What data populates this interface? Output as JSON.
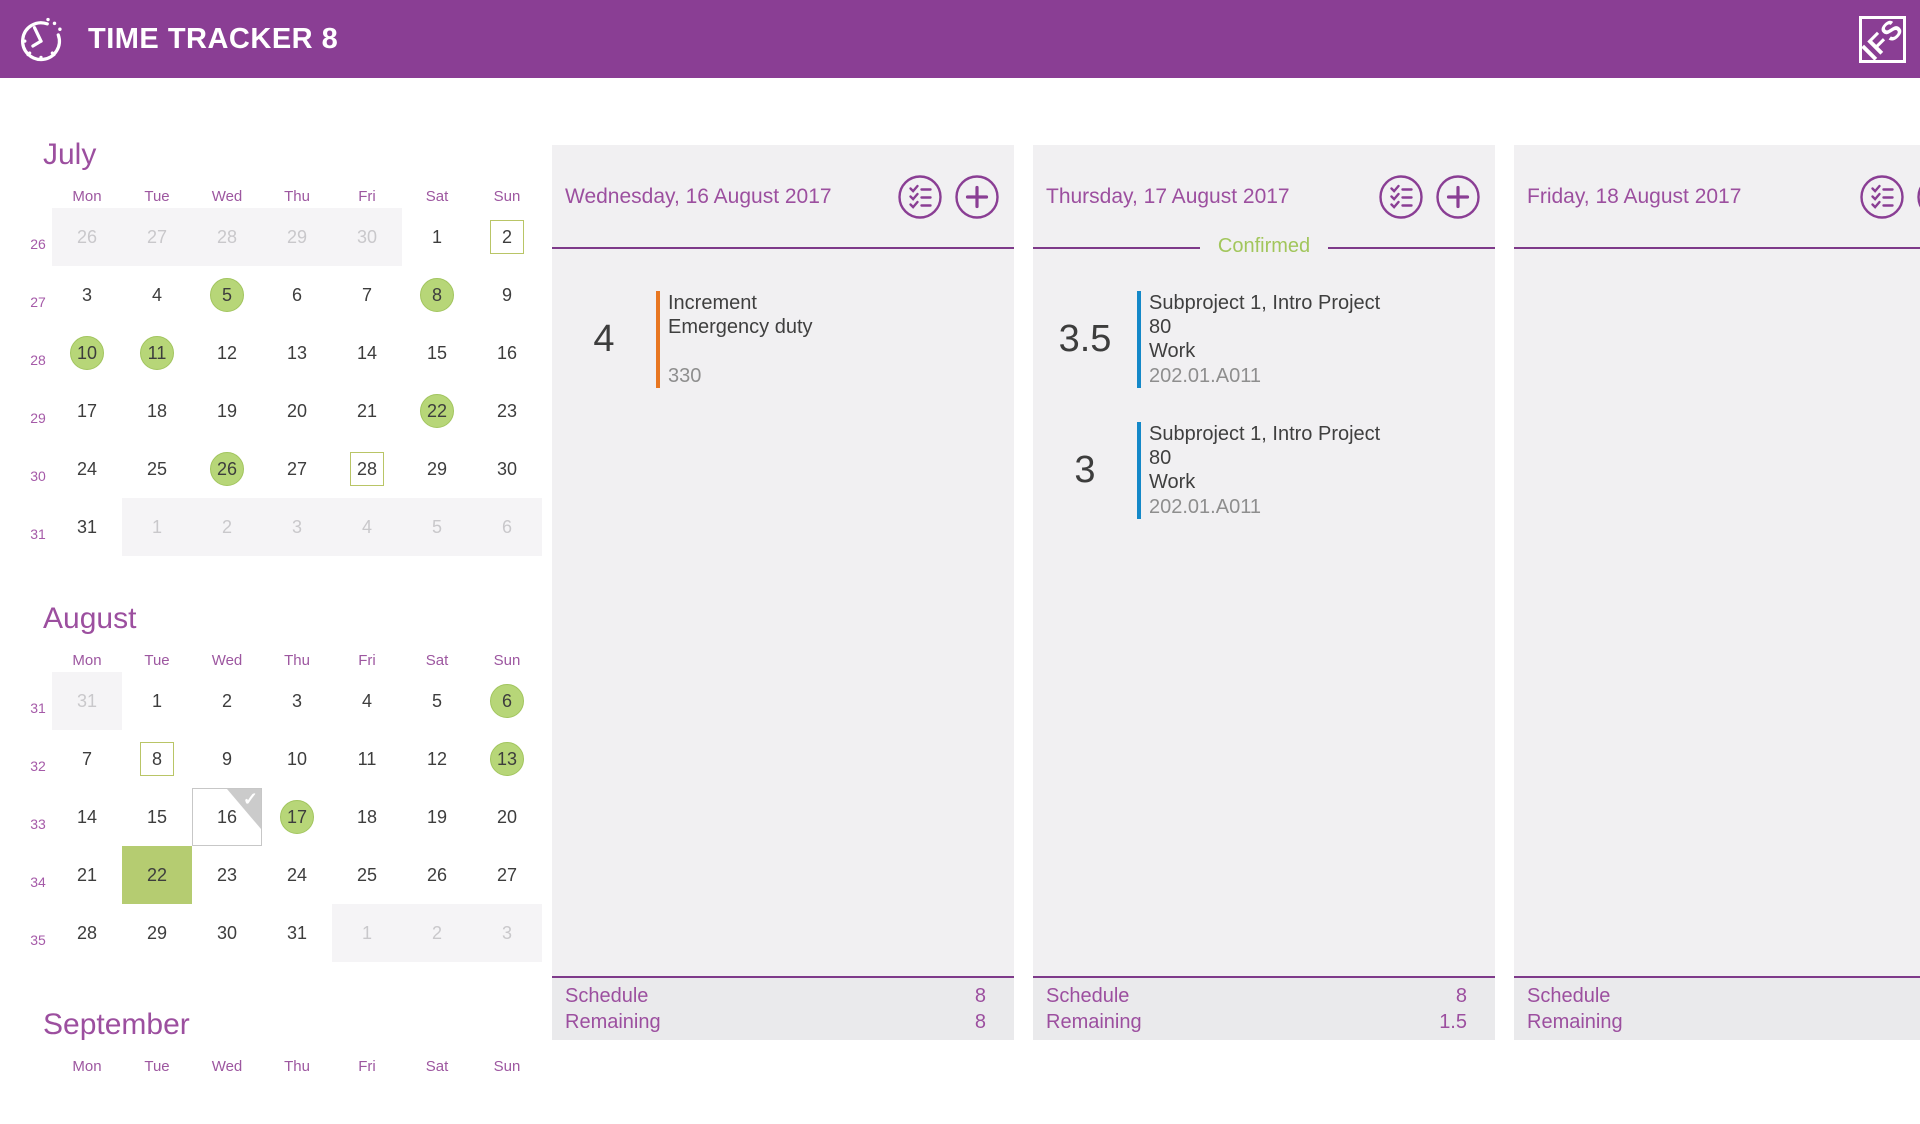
{
  "app": {
    "title": "TIME TRACKER 8",
    "logo_text": "IFS"
  },
  "colors": {
    "header_bg": "#8a3e94",
    "accent_text": "#9c4f9f",
    "line": "#7e3a8a",
    "icon": "#8a3e94",
    "confirmed": "#a2c65c",
    "day_circle_fill": "#b7d678",
    "day_circle_border": "#a2c55e",
    "day_outline_border": "#b9c566",
    "day_selected_bg": "#b5cc71",
    "column_bg": "#f1f0f2",
    "footer_bg": "#eaeaec",
    "muted_bg": "#f5f4f6"
  },
  "weekday_headers": [
    "Mon",
    "Tue",
    "Wed",
    "Thu",
    "Fri",
    "Sat",
    "Sun"
  ],
  "mini_calendars": [
    {
      "month": "July",
      "weeks": [
        {
          "week": 26,
          "days": [
            {
              "d": 26,
              "state": "muted"
            },
            {
              "d": 27,
              "state": "muted"
            },
            {
              "d": 28,
              "state": "muted"
            },
            {
              "d": 29,
              "state": "muted"
            },
            {
              "d": 30,
              "state": "muted"
            },
            {
              "d": 1,
              "state": "normal"
            },
            {
              "d": 2,
              "state": "outlined"
            }
          ]
        },
        {
          "week": 27,
          "days": [
            {
              "d": 3,
              "state": "normal"
            },
            {
              "d": 4,
              "state": "normal"
            },
            {
              "d": 5,
              "state": "circled"
            },
            {
              "d": 6,
              "state": "normal"
            },
            {
              "d": 7,
              "state": "normal"
            },
            {
              "d": 8,
              "state": "circled"
            },
            {
              "d": 9,
              "state": "normal"
            }
          ]
        },
        {
          "week": 28,
          "days": [
            {
              "d": 10,
              "state": "circled"
            },
            {
              "d": 11,
              "state": "circled"
            },
            {
              "d": 12,
              "state": "normal"
            },
            {
              "d": 13,
              "state": "normal"
            },
            {
              "d": 14,
              "state": "normal"
            },
            {
              "d": 15,
              "state": "normal"
            },
            {
              "d": 16,
              "state": "normal"
            }
          ]
        },
        {
          "week": 29,
          "days": [
            {
              "d": 17,
              "state": "normal"
            },
            {
              "d": 18,
              "state": "normal"
            },
            {
              "d": 19,
              "state": "normal"
            },
            {
              "d": 20,
              "state": "normal"
            },
            {
              "d": 21,
              "state": "normal"
            },
            {
              "d": 22,
              "state": "circled"
            },
            {
              "d": 23,
              "state": "normal"
            }
          ]
        },
        {
          "week": 30,
          "days": [
            {
              "d": 24,
              "state": "normal"
            },
            {
              "d": 25,
              "state": "normal"
            },
            {
              "d": 26,
              "state": "circled"
            },
            {
              "d": 27,
              "state": "normal"
            },
            {
              "d": 28,
              "state": "outlined"
            },
            {
              "d": 29,
              "state": "normal"
            },
            {
              "d": 30,
              "state": "normal"
            }
          ]
        },
        {
          "week": 31,
          "days": [
            {
              "d": 31,
              "state": "normal"
            },
            {
              "d": 1,
              "state": "muted"
            },
            {
              "d": 2,
              "state": "muted"
            },
            {
              "d": 3,
              "state": "muted"
            },
            {
              "d": 4,
              "state": "muted"
            },
            {
              "d": 5,
              "state": "muted"
            },
            {
              "d": 6,
              "state": "muted"
            }
          ]
        }
      ]
    },
    {
      "month": "August",
      "weeks": [
        {
          "week": 31,
          "days": [
            {
              "d": 31,
              "state": "muted"
            },
            {
              "d": 1,
              "state": "normal"
            },
            {
              "d": 2,
              "state": "normal"
            },
            {
              "d": 3,
              "state": "normal"
            },
            {
              "d": 4,
              "state": "normal"
            },
            {
              "d": 5,
              "state": "normal"
            },
            {
              "d": 6,
              "state": "circled"
            }
          ]
        },
        {
          "week": 32,
          "days": [
            {
              "d": 7,
              "state": "normal"
            },
            {
              "d": 8,
              "state": "outlined"
            },
            {
              "d": 9,
              "state": "normal"
            },
            {
              "d": 10,
              "state": "normal"
            },
            {
              "d": 11,
              "state": "normal"
            },
            {
              "d": 12,
              "state": "normal"
            },
            {
              "d": 13,
              "state": "circled"
            }
          ]
        },
        {
          "week": 33,
          "days": [
            {
              "d": 14,
              "state": "normal"
            },
            {
              "d": 15,
              "state": "normal"
            },
            {
              "d": 16,
              "state": "checked"
            },
            {
              "d": 17,
              "state": "circled"
            },
            {
              "d": 18,
              "state": "normal"
            },
            {
              "d": 19,
              "state": "normal"
            },
            {
              "d": 20,
              "state": "normal"
            }
          ]
        },
        {
          "week": 34,
          "days": [
            {
              "d": 21,
              "state": "normal"
            },
            {
              "d": 22,
              "state": "selected"
            },
            {
              "d": 23,
              "state": "normal"
            },
            {
              "d": 24,
              "state": "normal"
            },
            {
              "d": 25,
              "state": "normal"
            },
            {
              "d": 26,
              "state": "normal"
            },
            {
              "d": 27,
              "state": "normal"
            }
          ]
        },
        {
          "week": 35,
          "days": [
            {
              "d": 28,
              "state": "normal"
            },
            {
              "d": 29,
              "state": "normal"
            },
            {
              "d": 30,
              "state": "normal"
            },
            {
              "d": 31,
              "state": "normal"
            },
            {
              "d": 1,
              "state": "muted"
            },
            {
              "d": 2,
              "state": "muted"
            },
            {
              "d": 3,
              "state": "muted"
            }
          ]
        }
      ]
    },
    {
      "month": "September",
      "weeks": []
    }
  ],
  "day_columns": [
    {
      "title": "Wednesday, 16 August 2017",
      "confirmed": "",
      "entries": [
        {
          "hours": "4",
          "bar_color": "#e87722",
          "lines": [
            "Increment",
            "Emergency duty"
          ],
          "code": "330"
        }
      ],
      "footer": {
        "schedule_label": "Schedule",
        "schedule_value": "8",
        "remaining_label": "Remaining",
        "remaining_value": "8"
      }
    },
    {
      "title": "Thursday, 17 August 2017",
      "confirmed": "Confirmed",
      "entries": [
        {
          "hours": "3.5",
          "bar_color": "#1488c8",
          "lines": [
            "Subproject 1, Intro Project",
            "80",
            "Work"
          ],
          "code": "202.01.A011"
        },
        {
          "hours": "3",
          "bar_color": "#1488c8",
          "lines": [
            "Subproject 1, Intro Project",
            "80",
            "Work"
          ],
          "code": "202.01.A011"
        }
      ],
      "footer": {
        "schedule_label": "Schedule",
        "schedule_value": "8",
        "remaining_label": "Remaining",
        "remaining_value": "1.5"
      }
    },
    {
      "title": "Friday, 18 August 2017",
      "confirmed": "",
      "entries": [],
      "footer": {
        "schedule_label": "Schedule",
        "schedule_value": "",
        "remaining_label": "Remaining",
        "remaining_value": ""
      }
    }
  ]
}
